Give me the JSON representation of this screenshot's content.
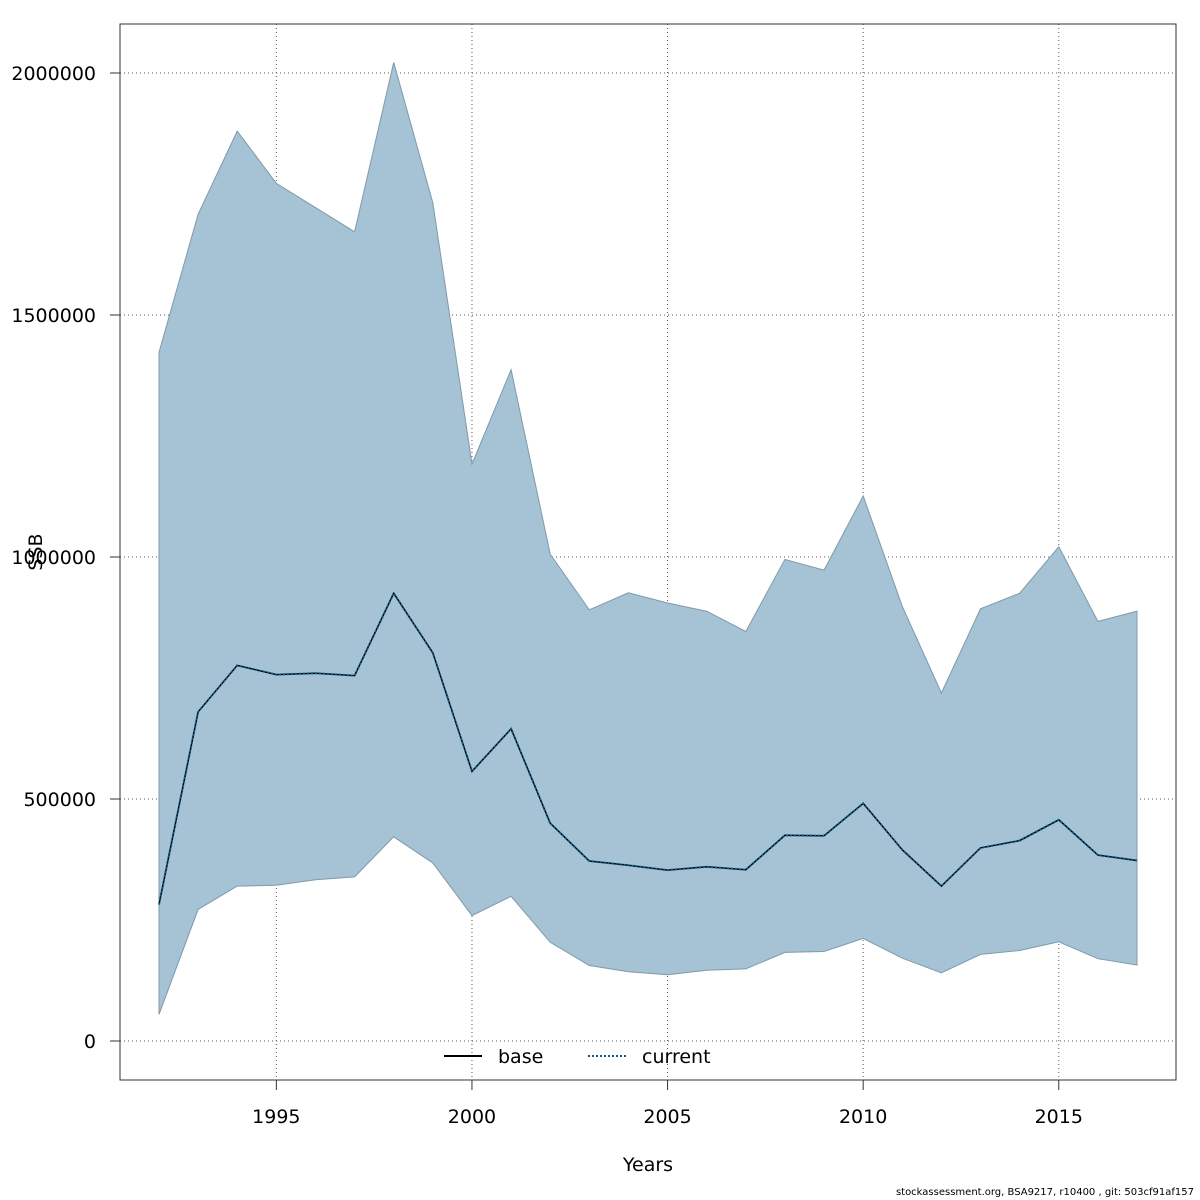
{
  "chart_data": {
    "type": "area",
    "xlabel": "Years",
    "ylabel": "SSB",
    "xlim": [
      1992,
      2017
    ],
    "ylim": [
      0,
      2000000
    ],
    "x_ticks": [
      1995,
      2000,
      2005,
      2010,
      2015
    ],
    "y_ticks": [
      0,
      500000,
      1000000,
      1500000,
      2000000
    ],
    "grid": true,
    "legend_position": "bottom-center",
    "band_color": "#a5c3d5",
    "x": [
      1992,
      1993,
      1994,
      1995,
      1996,
      1997,
      1998,
      1999,
      2000,
      2001,
      2002,
      2003,
      2004,
      2005,
      2006,
      2007,
      2008,
      2009,
      2010,
      2011,
      2012,
      2013,
      2014,
      2015,
      2016,
      2017
    ],
    "band": {
      "upper": [
        1423000,
        1708000,
        1880000,
        1772000,
        1722000,
        1672000,
        2022000,
        1732000,
        1192000,
        1387000,
        1006000,
        891000,
        926000,
        905000,
        888000,
        846000,
        995000,
        973000,
        1126000,
        898000,
        719000,
        893000,
        925000,
        1021000,
        867000,
        888000
      ],
      "lower": [
        55000,
        272000,
        320000,
        322000,
        333000,
        339000,
        422000,
        368000,
        259000,
        299000,
        204000,
        156000,
        143000,
        137000,
        146000,
        149000,
        183000,
        185000,
        212000,
        171000,
        141000,
        179000,
        187000,
        205000,
        170000,
        157000
      ]
    },
    "series": [
      {
        "name": "base",
        "color": "#000000",
        "style": "solid",
        "values": [
          282000,
          680000,
          776000,
          757000,
          760000,
          755000,
          925000,
          802000,
          557000,
          645000,
          450000,
          372000,
          363000,
          353000,
          360000,
          354000,
          425000,
          424000,
          491000,
          395000,
          320000,
          399000,
          414000,
          457000,
          384000,
          373000
        ]
      },
      {
        "name": "current",
        "color": "#0b5c8c",
        "style": "dotted",
        "values": [
          282000,
          680000,
          776000,
          757000,
          760000,
          755000,
          925000,
          802000,
          557000,
          645000,
          450000,
          372000,
          363000,
          353000,
          360000,
          354000,
          425000,
          424000,
          491000,
          395000,
          320000,
          399000,
          414000,
          457000,
          384000,
          373000
        ]
      }
    ]
  },
  "footer": "stockassessment.org, BSA9217, r10400 , git: 503cf91af157"
}
